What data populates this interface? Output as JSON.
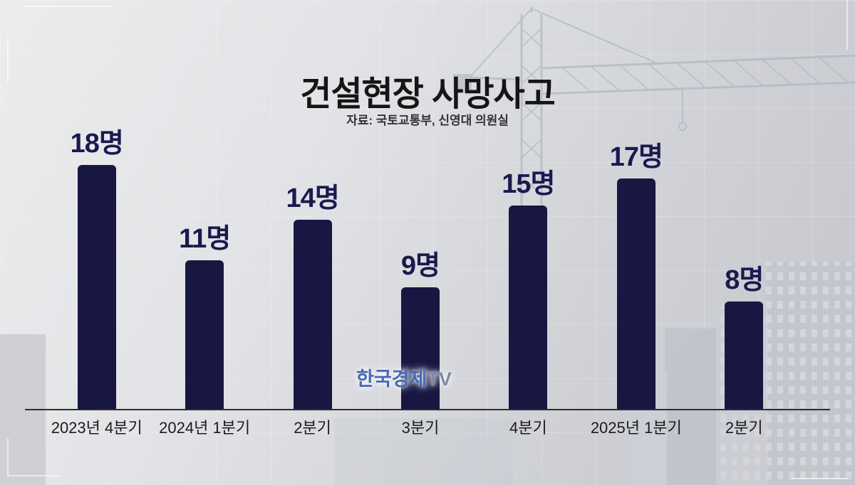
{
  "header": {
    "title": "건설현장 사망사고",
    "source": "자료: 국토교통부, 신영대 의원실"
  },
  "watermark": {
    "text_main": "한국경제",
    "text_suffix": "TV"
  },
  "chart_data": {
    "type": "bar",
    "title": "건설현장 사망사고",
    "source": "자료: 국토교통부, 신영대 의원실",
    "categories": [
      "2023년 4분기",
      "2024년 1분기",
      "2분기",
      "3분기",
      "4분기",
      "2025년 1분기",
      "2분기"
    ],
    "values": [
      18,
      11,
      14,
      9,
      15,
      17,
      8
    ],
    "value_labels": [
      "18명",
      "11명",
      "14명",
      "9명",
      "15명",
      "17명",
      "8명"
    ],
    "unit": "명",
    "ylim": [
      0,
      18
    ],
    "legend": "none",
    "grid": "off",
    "bar_color": "#171742",
    "value_label_color": "#1a1a4e",
    "axis_label_color": "#1c1c1c"
  }
}
